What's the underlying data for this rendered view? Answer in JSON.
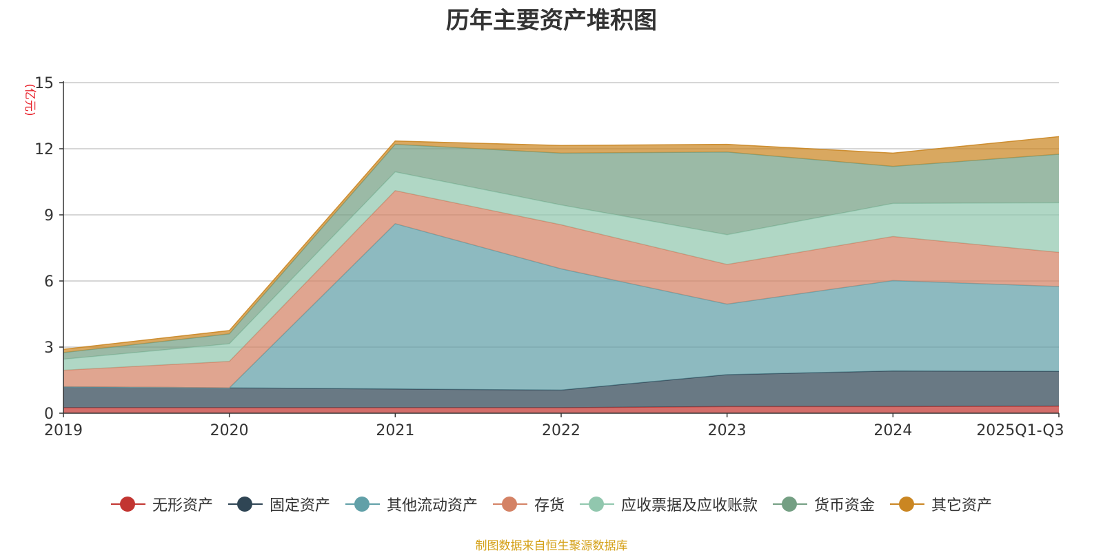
{
  "chart_data": {
    "type": "area",
    "stacked": true,
    "title": "历年主要资产堆积图",
    "ylabel": "(亿元)",
    "xlabel": "",
    "categories": [
      "2019",
      "2020",
      "2021",
      "2022",
      "2023",
      "2024",
      "2025Q1-Q3"
    ],
    "ylim": [
      0,
      15
    ],
    "yticks": [
      0,
      3,
      6,
      9,
      12,
      15
    ],
    "grid": true,
    "legend_position": "bottom",
    "series": [
      {
        "name": "无形资产",
        "color": "#c23531",
        "values": [
          0.25,
          0.25,
          0.25,
          0.25,
          0.3,
          0.3,
          0.32
        ]
      },
      {
        "name": "固定资产",
        "color": "#2f4554",
        "values": [
          0.95,
          0.9,
          0.85,
          0.8,
          1.45,
          1.62,
          1.58
        ]
      },
      {
        "name": "其他流动资产",
        "color": "#61a0a8",
        "values": [
          0.0,
          0.0,
          7.5,
          5.5,
          3.2,
          4.1,
          3.85
        ]
      },
      {
        "name": "存货",
        "color": "#d48265",
        "values": [
          0.75,
          1.2,
          1.5,
          2.0,
          1.8,
          2.0,
          1.55
        ]
      },
      {
        "name": "应收票据及应收账款",
        "color": "#91c7ae",
        "values": [
          0.5,
          0.8,
          0.85,
          0.9,
          1.35,
          1.5,
          2.25
        ]
      },
      {
        "name": "货币资金",
        "color": "#749f83",
        "values": [
          0.3,
          0.45,
          1.25,
          2.35,
          3.75,
          1.68,
          2.2
        ]
      },
      {
        "name": "其它资产",
        "color": "#ca8622",
        "values": [
          0.15,
          0.15,
          0.15,
          0.35,
          0.35,
          0.6,
          0.8
        ]
      }
    ]
  },
  "source_note": "制图数据来自恒生聚源数据库"
}
